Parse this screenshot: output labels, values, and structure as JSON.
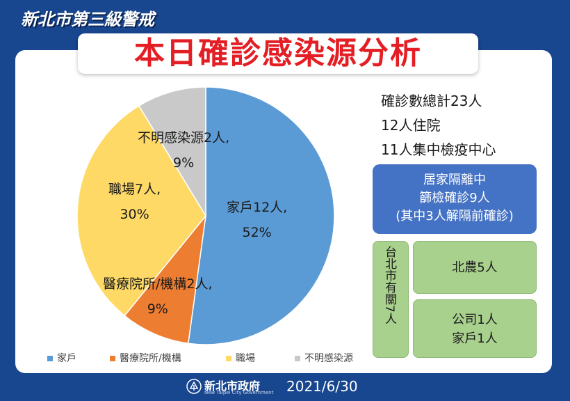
{
  "header": {
    "tag": "新北市第三級警戒",
    "title": "本日確診感染源分析"
  },
  "chart_data": {
    "type": "pie",
    "categories": [
      "家戶",
      "醫療院所/機構",
      "職場",
      "不明感染源"
    ],
    "values": [
      12,
      2,
      7,
      2
    ],
    "percent_labels": [
      "52%",
      "9%",
      "30%",
      "9%"
    ],
    "slice_labels": [
      "家戶12人,",
      "醫療院所/機構2人,",
      "職場7人,",
      "不明感染源2人,"
    ],
    "colors": [
      "#5b9bd5",
      "#ed7d31",
      "#ffd966",
      "#c9c9c9"
    ],
    "legend": [
      "家戶",
      "醫療院所/機構",
      "職場",
      "不明感染源"
    ],
    "legend_position": "bottom"
  },
  "summary": {
    "line1": "確診數總計23人",
    "line2": "12人住院",
    "line3": "11人集中檢疫中心"
  },
  "home_isolation": {
    "line1": "居家隔離中",
    "line2": "篩檢確診9人",
    "line3": "(其中3人解隔前確診)"
  },
  "related": {
    "vertical_label": "台北市有關7人",
    "box1": "北農5人",
    "box2_line1": "公司1人",
    "box2_line2": "家戶1人"
  },
  "footer": {
    "org": "新北市政府",
    "org_en": "New Taipei City Government",
    "date": "2021/6/30"
  }
}
